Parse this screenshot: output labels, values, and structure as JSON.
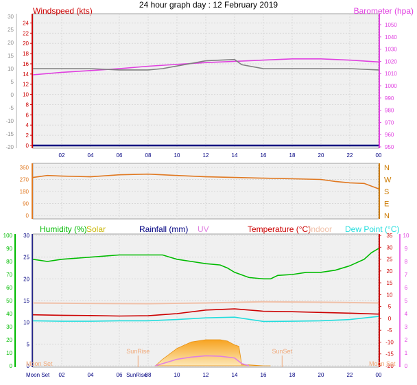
{
  "title": "24 hour graph day : 12 February 2019",
  "x_ticks": [
    "02",
    "04",
    "06",
    "08",
    "10",
    "12",
    "14",
    "16",
    "18",
    "20",
    "22",
    "00"
  ],
  "colors": {
    "windspeed": "#cc0000",
    "barometer": "#e040e0",
    "humidity": "#00bb00",
    "solar": "#c8b400",
    "rainfall": "#000080",
    "uv": "#e080e0",
    "temperature": "#cc0000",
    "indoor": "#f0c0a8",
    "dewpoint": "#22dddd",
    "direction": "#e07820",
    "axis": "#808080",
    "plotbg": "#f0f0f0",
    "grid": "#d8d8d8"
  },
  "chart_data": [
    {
      "id": "wind-baro",
      "type": "line",
      "labels": {
        "left": "Windspeed (kts)",
        "right": "Barometer (hpa)"
      },
      "y_left_ticks": [
        24,
        22,
        20,
        18,
        16,
        14,
        12,
        10,
        8,
        6,
        4,
        2,
        0
      ],
      "y_left_outer_ticks": [
        30,
        25,
        20,
        15,
        10,
        5,
        0,
        -5,
        -10,
        -15,
        -20
      ],
      "y_right_ticks": [
        1050,
        1040,
        1030,
        1020,
        1010,
        1000,
        990,
        980,
        970,
        960,
        950
      ],
      "series": [
        {
          "axis": "right",
          "color_key": "barometer",
          "x": [
            0,
            2,
            4,
            6,
            8,
            10,
            12,
            14,
            16,
            18,
            20,
            22,
            24
          ],
          "y": [
            1009,
            1011,
            1012.5,
            1014,
            1016,
            1017.5,
            1019,
            1020,
            1021,
            1022,
            1022,
            1021,
            1019.5
          ]
        },
        {
          "axis": "outer",
          "color_key": "axis",
          "x": [
            0,
            4,
            6,
            8,
            9,
            10,
            12,
            14,
            14.5,
            16,
            20,
            22,
            24
          ],
          "y": [
            10,
            10,
            9.5,
            9.5,
            10,
            11,
            13,
            13.5,
            11.5,
            10,
            10,
            10,
            9.5
          ]
        },
        {
          "axis": "left",
          "color_key": "rainfall",
          "x": [
            0,
            24
          ],
          "y": [
            0,
            0
          ]
        }
      ]
    },
    {
      "id": "direction",
      "type": "line",
      "y_ticks": [
        360,
        270,
        180,
        90,
        0
      ],
      "compass": [
        "N",
        "W",
        "S",
        "E",
        "N"
      ],
      "series": [
        {
          "color_key": "direction",
          "x": [
            0,
            1,
            2,
            4,
            6,
            8,
            10,
            12,
            14,
            16,
            18,
            20,
            21,
            22,
            23,
            24
          ],
          "y": [
            285,
            300,
            295,
            290,
            305,
            310,
            300,
            290,
            285,
            280,
            275,
            270,
            255,
            245,
            240,
            200
          ]
        }
      ]
    },
    {
      "id": "multi",
      "type": "line",
      "labels": {
        "humidity": "Humidity (%)",
        "solar": "Solar",
        "rainfall": "Rainfall (mm)",
        "uv": "UV",
        "temperature": "Temperature (°C)",
        "indoor": "Indoor",
        "dewpoint": "Dew Point (°C)"
      },
      "y_humidity_ticks": [
        100,
        90,
        80,
        70,
        60,
        50,
        40,
        30,
        20,
        10,
        0
      ],
      "y_rain_ticks": [
        30,
        25,
        20,
        15,
        10,
        5,
        0
      ],
      "y_temp_ticks": [
        35,
        30,
        25,
        20,
        15,
        10,
        5,
        0,
        -5,
        -10,
        -15,
        -20
      ],
      "y_uv_ticks": [
        10,
        9,
        8,
        7,
        6,
        5,
        4,
        3,
        2,
        1,
        0
      ],
      "series": [
        {
          "color_key": "humidity",
          "axis": "rain",
          "x": [
            0,
            1,
            2,
            4,
            6,
            8,
            9,
            10,
            11,
            12,
            13,
            13.5,
            14,
            15,
            16,
            16.5,
            17,
            18,
            19,
            20,
            21,
            22,
            23,
            23.5,
            24
          ],
          "y": [
            24.5,
            24,
            24.5,
            25,
            25.5,
            25.5,
            25.5,
            24.5,
            24,
            23.5,
            23.2,
            22.5,
            21.5,
            20.3,
            20,
            20,
            20.8,
            21,
            21.5,
            21.5,
            22,
            23,
            24.5,
            26,
            27
          ]
        },
        {
          "color_key": "indoor",
          "axis": "temp",
          "x": [
            0,
            4,
            8,
            12,
            16,
            20,
            24
          ],
          "y": [
            6.5,
            6.3,
            6.2,
            6.5,
            7,
            6.8,
            6.5
          ]
        },
        {
          "color_key": "temperature",
          "axis": "temp",
          "x": [
            0,
            2,
            4,
            6,
            8,
            10,
            12,
            14,
            16,
            18,
            20,
            22,
            24
          ],
          "y": [
            1.5,
            1.3,
            1.2,
            1,
            1.1,
            2,
            3.5,
            4,
            3,
            2.8,
            2.5,
            2.2,
            1.8
          ]
        },
        {
          "color_key": "dewpoint",
          "axis": "temp",
          "x": [
            0,
            2,
            4,
            6,
            8,
            10,
            12,
            14,
            16,
            18,
            20,
            22,
            24
          ],
          "y": [
            -1,
            -1.2,
            -1.2,
            -1,
            -1,
            -0.5,
            0.2,
            0.5,
            -1.3,
            -1.2,
            -1,
            -0.5,
            0.8
          ]
        },
        {
          "color_key": "solar",
          "axis": "rain",
          "type": "area",
          "x": [
            8.5,
            9,
            10,
            11,
            12,
            13,
            13.5,
            14,
            14.3,
            14.5,
            15,
            16,
            16.5
          ],
          "y": [
            0,
            1.5,
            4,
            5.5,
            6,
            6,
            5.7,
            4.8,
            4.5,
            0.2,
            0.2,
            0,
            0
          ]
        },
        {
          "color_key": "uv",
          "axis": "rain",
          "x": [
            8.5,
            10,
            11,
            12,
            13,
            14,
            14.5,
            15
          ],
          "y": [
            0,
            1.5,
            2,
            2.3,
            2.2,
            1.8,
            0.5,
            0
          ]
        }
      ],
      "sun_events": [
        {
          "label": "SunRise",
          "x": 7.3
        },
        {
          "label": "SunSet",
          "x": 17.3
        }
      ],
      "moon_events": [
        {
          "label": "Moon Set",
          "x": 0
        },
        {
          "label": "Moon Set",
          "x": 24
        }
      ],
      "bottom_labels": [
        "Moon Set",
        "02",
        "04",
        "06",
        "SunRise",
        "08",
        "10",
        "12",
        "14",
        "16",
        "18",
        "20",
        "22",
        "00"
      ]
    }
  ]
}
